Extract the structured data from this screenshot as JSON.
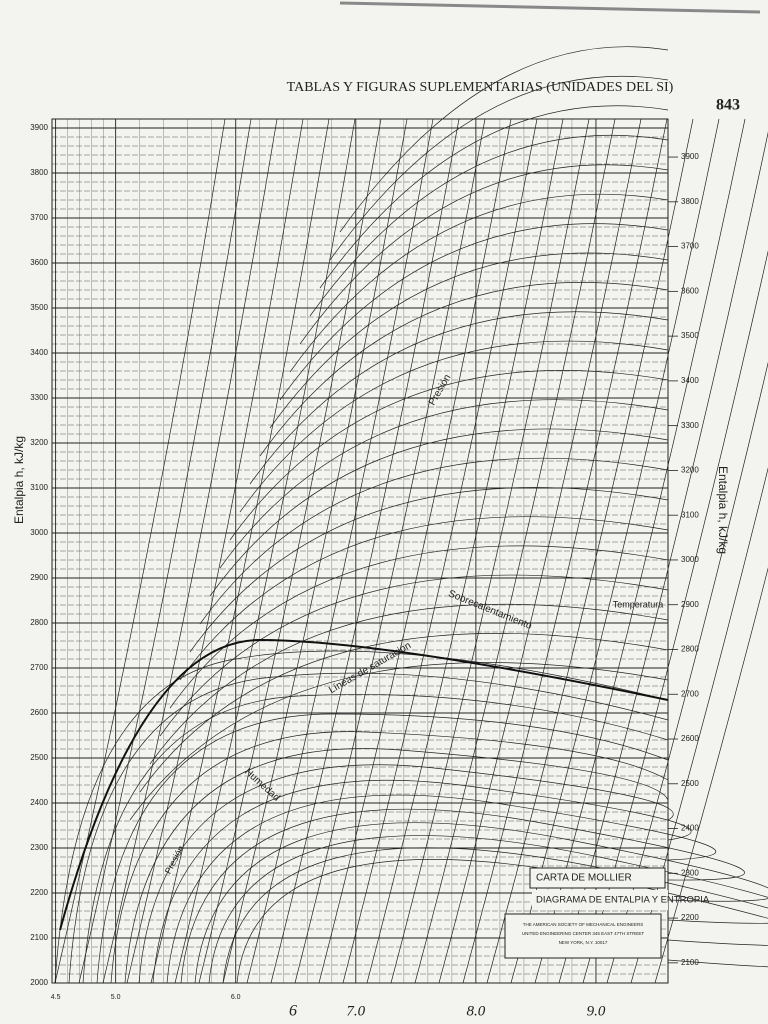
{
  "header": {
    "page_title": "TABLAS Y FIGURAS SUPLEMENTARIAS (UNIDADES DEL SI)",
    "page_number": "843"
  },
  "chart_data": {
    "type": "line",
    "title": "CARTA DE MOLLIER",
    "subtitle": "DIAGRAMA DE ENTALPIA Y ENTROPIA",
    "ylabel": "Entalpia h, kJ/kg",
    "y2label": "Entalpia h, kJ/kg",
    "xlim": [
      4.47,
      9.6
    ],
    "xticks": [
      4.5,
      {
        "value": 5,
        "label": "5.0"
      },
      {
        "value": 6,
        "label": "6.0"
      },
      {
        "value": 7,
        "label": "7.0"
      },
      {
        "value": 8,
        "label": "8.0"
      },
      {
        "value": 9,
        "label": "9.0"
      }
    ],
    "ylim": [
      2000,
      3920
    ],
    "yticks": [
      2000,
      2100,
      2200,
      2300,
      2400,
      2500,
      2600,
      2700,
      2800,
      2900,
      3000,
      3100,
      3200,
      3300,
      3400,
      3500,
      3600,
      3700,
      3800,
      3900
    ],
    "y2lim": [
      2055,
      3985
    ],
    "y2ticks": [
      2100,
      2200,
      2300,
      2400,
      2500,
      2600,
      2700,
      2800,
      2900,
      3000,
      3100,
      3200,
      3300,
      3400,
      3500,
      3600,
      3700,
      3800,
      3900
    ],
    "grid": true,
    "annotations": [
      "Presión",
      "Sobrecalentamiento",
      "Temperatura",
      "Líneas de saturación",
      "Humedad",
      "Presión",
      "6"
    ],
    "publisher": [
      "THE AMERICAN SOCIETY OF MECHANICAL ENGINEERS",
      "UNITED ENGINEERING CENTER 345 EAST 47TH STREET",
      "NEW YORK, N.Y. 10017"
    ]
  }
}
